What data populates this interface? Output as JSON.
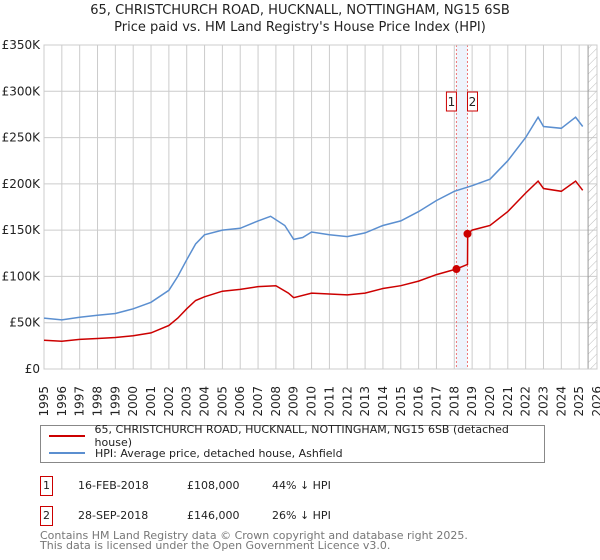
{
  "title": "65, CHRISTCHURCH ROAD, HUCKNALL, NOTTINGHAM, NG15 6SB",
  "subtitle": "Price paid vs. HM Land Registry's House Price Index (HPI)",
  "chart_data": {
    "type": "line",
    "title": "65, CHRISTCHURCH ROAD, HUCKNALL, NOTTINGHAM, NG15 6SB",
    "subtitle": "Price paid vs. HM Land Registry's House Price Index (HPI)",
    "xlim": [
      1995,
      2026
    ],
    "ylim": [
      0,
      350000
    ],
    "grid": true,
    "x_ticks": [
      "1995",
      "1996",
      "1997",
      "1998",
      "1999",
      "2000",
      "2001",
      "2002",
      "2003",
      "2004",
      "2005",
      "2006",
      "2007",
      "2008",
      "2009",
      "2010",
      "2011",
      "2012",
      "2013",
      "2014",
      "2015",
      "2016",
      "2017",
      "2018",
      "2019",
      "2020",
      "2021",
      "2022",
      "2023",
      "2024",
      "2025",
      "2026"
    ],
    "y_ticks": [
      {
        "v": 0,
        "label": "£0"
      },
      {
        "v": 50000,
        "label": "£50K"
      },
      {
        "v": 100000,
        "label": "£100K"
      },
      {
        "v": 150000,
        "label": "£150K"
      },
      {
        "v": 200000,
        "label": "£200K"
      },
      {
        "v": 250000,
        "label": "£250K"
      },
      {
        "v": 300000,
        "label": "£300K"
      },
      {
        "v": 350000,
        "label": "£350K"
      }
    ],
    "forecast_start": 2025.5,
    "series": [
      {
        "name": "65, CHRISTCHURCH ROAD, HUCKNALL, NOTTINGHAM, NG15 6SB (detached house)",
        "color": "#cc0000",
        "x": [
          1995,
          1996,
          1997,
          1998,
          1999,
          2000,
          2001,
          2002,
          2002.5,
          2003,
          2003.5,
          2004,
          2005,
          2006,
          2007,
          2008,
          2008.7,
          2009,
          2010,
          2011,
          2012,
          2013,
          2014,
          2015,
          2016,
          2017,
          2018.12,
          2018.74,
          2018.75,
          2019,
          2020,
          2021,
          2022,
          2022.7,
          2023,
          2024,
          2024.8,
          2025.2
        ],
        "y": [
          31000,
          30000,
          32000,
          33000,
          34000,
          36000,
          39000,
          47000,
          55000,
          65000,
          74000,
          78000,
          84000,
          86000,
          89000,
          90000,
          82000,
          77000,
          82000,
          81000,
          80000,
          82000,
          87000,
          90000,
          95000,
          102000,
          108000,
          113000,
          146000,
          150000,
          155000,
          170000,
          190000,
          203000,
          195000,
          192000,
          203000,
          193000
        ]
      },
      {
        "name": "HPI: Average price, detached house, Ashfield",
        "color": "#5b8fd0",
        "x": [
          1995,
          1996,
          1997,
          1998,
          1999,
          2000,
          2001,
          2002,
          2002.5,
          2003,
          2003.5,
          2004,
          2005,
          2006,
          2007,
          2007.7,
          2008.5,
          2009,
          2009.5,
          2010,
          2011,
          2012,
          2013,
          2014,
          2015,
          2016,
          2017,
          2018,
          2019,
          2020,
          2021,
          2022,
          2022.7,
          2023,
          2024,
          2024.8,
          2025.2
        ],
        "y": [
          55000,
          53000,
          56000,
          58000,
          60000,
          65000,
          72000,
          85000,
          100000,
          118000,
          135000,
          145000,
          150000,
          152000,
          160000,
          165000,
          155000,
          140000,
          142000,
          148000,
          145000,
          143000,
          147000,
          155000,
          160000,
          170000,
          182000,
          192000,
          198000,
          205000,
          225000,
          250000,
          272000,
          262000,
          260000,
          272000,
          262000
        ]
      }
    ],
    "transactions": [
      {
        "id": "1",
        "x": 2018.12,
        "y": 108000
      },
      {
        "id": "2",
        "x": 2018.74,
        "y": 146000
      }
    ]
  },
  "legend": {
    "property": "65, CHRISTCHURCH ROAD, HUCKNALL, NOTTINGHAM, NG15 6SB (detached house)",
    "hpi": "HPI: Average price, detached house, Ashfield"
  },
  "sales": [
    {
      "id": "1",
      "date": "16-FEB-2018",
      "price": "£108,000",
      "diff": "44% ↓ HPI"
    },
    {
      "id": "2",
      "date": "28-SEP-2018",
      "price": "£146,000",
      "diff": "26% ↓ HPI"
    }
  ],
  "footer": {
    "line1": "Contains HM Land Registry data © Crown copyright and database right 2025.",
    "line2": "This data is licensed under the Open Government Licence v3.0."
  }
}
